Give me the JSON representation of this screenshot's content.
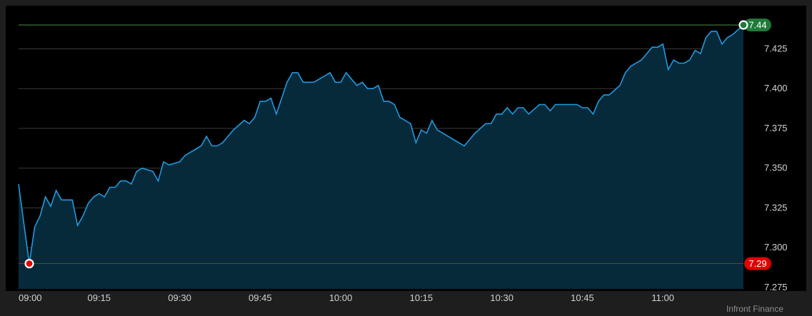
{
  "credit": "Infront Finance",
  "colors": {
    "background": "#1e1e1e",
    "plot_background": "#000000",
    "line": "#1f9ade",
    "area": "#072a3b",
    "grid": "#3a3a3a",
    "high": "#1f7a3a",
    "high_line": "#4a8a4a",
    "low": "#e00000",
    "low_line": "#b02020"
  },
  "chart_data": {
    "type": "area",
    "title": "",
    "xlabel": "",
    "ylabel": "",
    "x_start": "09:00",
    "x_end": "11:15",
    "ylim": [
      7.275,
      7.44
    ],
    "y_ticks": [
      "7.275",
      "7.300",
      "7.325",
      "7.350",
      "7.375",
      "7.400",
      "7.425"
    ],
    "x_ticks": [
      "09:00",
      "09:15",
      "09:30",
      "09:45",
      "10:00",
      "10:15",
      "10:30",
      "10:45",
      "11:00"
    ],
    "grid": true,
    "high": {
      "label": "7.44",
      "value": 7.44,
      "time": "11:15"
    },
    "low": {
      "label": "7.29",
      "value": 7.29,
      "time": "09:02"
    },
    "points": [
      [
        "09:00",
        7.34
      ],
      [
        "09:02",
        7.29
      ],
      [
        "09:03",
        7.313
      ],
      [
        "09:04",
        7.32
      ],
      [
        "09:05",
        7.332
      ],
      [
        "09:06",
        7.326
      ],
      [
        "09:07",
        7.336
      ],
      [
        "09:08",
        7.33
      ],
      [
        "09:09",
        7.33
      ],
      [
        "09:10",
        7.33
      ],
      [
        "09:11",
        7.314
      ],
      [
        "09:12",
        7.32
      ],
      [
        "09:13",
        7.328
      ],
      [
        "09:14",
        7.332
      ],
      [
        "09:15",
        7.334
      ],
      [
        "09:16",
        7.332
      ],
      [
        "09:17",
        7.338
      ],
      [
        "09:18",
        7.338
      ],
      [
        "09:19",
        7.342
      ],
      [
        "09:20",
        7.342
      ],
      [
        "09:21",
        7.34
      ],
      [
        "09:22",
        7.348
      ],
      [
        "09:23",
        7.35
      ],
      [
        "09:24",
        7.349
      ],
      [
        "09:25",
        7.348
      ],
      [
        "09:26",
        7.342
      ],
      [
        "09:27",
        7.354
      ],
      [
        "09:28",
        7.352
      ],
      [
        "09:29",
        7.353
      ],
      [
        "09:30",
        7.354
      ],
      [
        "09:31",
        7.358
      ],
      [
        "09:32",
        7.36
      ],
      [
        "09:33",
        7.362
      ],
      [
        "09:34",
        7.364
      ],
      [
        "09:35",
        7.37
      ],
      [
        "09:36",
        7.364
      ],
      [
        "09:37",
        7.364
      ],
      [
        "09:38",
        7.366
      ],
      [
        "09:39",
        7.37
      ],
      [
        "09:40",
        7.374
      ],
      [
        "09:41",
        7.377
      ],
      [
        "09:42",
        7.38
      ],
      [
        "09:43",
        7.378
      ],
      [
        "09:44",
        7.382
      ],
      [
        "09:45",
        7.392
      ],
      [
        "09:46",
        7.392
      ],
      [
        "09:47",
        7.394
      ],
      [
        "09:48",
        7.384
      ],
      [
        "09:49",
        7.394
      ],
      [
        "09:50",
        7.404
      ],
      [
        "09:51",
        7.41
      ],
      [
        "09:52",
        7.41
      ],
      [
        "09:53",
        7.404
      ],
      [
        "09:54",
        7.404
      ],
      [
        "09:55",
        7.404
      ],
      [
        "09:56",
        7.406
      ],
      [
        "09:57",
        7.408
      ],
      [
        "09:58",
        7.41
      ],
      [
        "09:59",
        7.404
      ],
      [
        "10:00",
        7.404
      ],
      [
        "10:01",
        7.41
      ],
      [
        "10:02",
        7.406
      ],
      [
        "10:03",
        7.402
      ],
      [
        "10:04",
        7.404
      ],
      [
        "10:05",
        7.4
      ],
      [
        "10:06",
        7.4
      ],
      [
        "10:07",
        7.402
      ],
      [
        "10:08",
        7.392
      ],
      [
        "10:09",
        7.392
      ],
      [
        "10:10",
        7.39
      ],
      [
        "10:11",
        7.382
      ],
      [
        "10:12",
        7.38
      ],
      [
        "10:13",
        7.378
      ],
      [
        "10:14",
        7.366
      ],
      [
        "10:15",
        7.374
      ],
      [
        "10:16",
        7.372
      ],
      [
        "10:17",
        7.38
      ],
      [
        "10:18",
        7.374
      ],
      [
        "10:23",
        7.364
      ],
      [
        "10:25",
        7.372
      ],
      [
        "10:26",
        7.375
      ],
      [
        "10:27",
        7.378
      ],
      [
        "10:28",
        7.378
      ],
      [
        "10:29",
        7.384
      ],
      [
        "10:30",
        7.384
      ],
      [
        "10:31",
        7.388
      ],
      [
        "10:32",
        7.384
      ],
      [
        "10:33",
        7.388
      ],
      [
        "10:34",
        7.388
      ],
      [
        "10:35",
        7.384
      ],
      [
        "10:36",
        7.387
      ],
      [
        "10:37",
        7.39
      ],
      [
        "10:38",
        7.39
      ],
      [
        "10:39",
        7.386
      ],
      [
        "10:40",
        7.39
      ],
      [
        "10:41",
        7.39
      ],
      [
        "10:42",
        7.39
      ],
      [
        "10:43",
        7.39
      ],
      [
        "10:44",
        7.39
      ],
      [
        "10:45",
        7.388
      ],
      [
        "10:46",
        7.388
      ],
      [
        "10:47",
        7.384
      ],
      [
        "10:48",
        7.392
      ],
      [
        "10:49",
        7.396
      ],
      [
        "10:50",
        7.396
      ],
      [
        "10:51",
        7.399
      ],
      [
        "10:52",
        7.402
      ],
      [
        "10:53",
        7.41
      ],
      [
        "10:54",
        7.414
      ],
      [
        "10:55",
        7.416
      ],
      [
        "10:56",
        7.418
      ],
      [
        "10:57",
        7.422
      ],
      [
        "10:58",
        7.426
      ],
      [
        "10:59",
        7.426
      ],
      [
        "11:00",
        7.428
      ],
      [
        "11:01",
        7.412
      ],
      [
        "11:02",
        7.418
      ],
      [
        "11:03",
        7.416
      ],
      [
        "11:04",
        7.416
      ],
      [
        "11:05",
        7.418
      ],
      [
        "11:06",
        7.424
      ],
      [
        "11:07",
        7.422
      ],
      [
        "11:08",
        7.432
      ],
      [
        "11:09",
        7.436
      ],
      [
        "11:10",
        7.436
      ],
      [
        "11:11",
        7.428
      ],
      [
        "11:12",
        7.432
      ],
      [
        "11:13",
        7.434
      ],
      [
        "11:14",
        7.437
      ],
      [
        "11:15",
        7.44
      ]
    ]
  }
}
